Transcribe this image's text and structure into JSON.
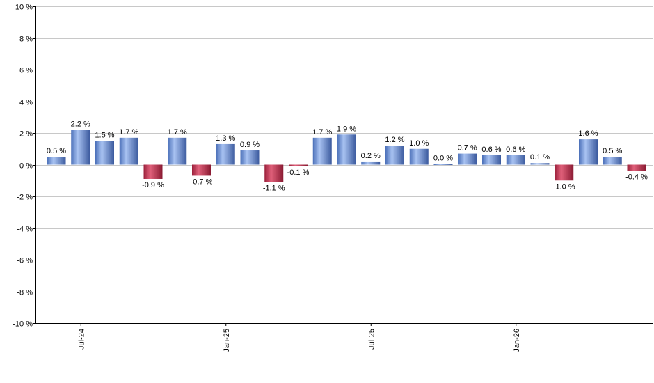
{
  "chart_data": {
    "type": "bar",
    "title": "",
    "xlabel": "",
    "ylabel": "",
    "ylim": [
      -10,
      10
    ],
    "grid": true,
    "legend": "none",
    "y_ticks": [
      {
        "value": 10,
        "label": "10 %"
      },
      {
        "value": 8,
        "label": "8 %"
      },
      {
        "value": 6,
        "label": "6 %"
      },
      {
        "value": 4,
        "label": "4 %"
      },
      {
        "value": 2,
        "label": "2 %"
      },
      {
        "value": 0,
        "label": "0 %"
      },
      {
        "value": -2,
        "label": "-2 %"
      },
      {
        "value": -4,
        "label": "-4 %"
      },
      {
        "value": -6,
        "label": "-6 %"
      },
      {
        "value": -8,
        "label": "-8 %"
      },
      {
        "value": -10,
        "label": "-10 %"
      }
    ],
    "x_ticks": [
      {
        "bar_index": 1,
        "label": "Jul-24"
      },
      {
        "bar_index": 7,
        "label": "Jan-25"
      },
      {
        "bar_index": 13,
        "label": "Jul-25"
      },
      {
        "bar_index": 19,
        "label": "Jan-26"
      }
    ],
    "values": [
      0.5,
      2.2,
      1.5,
      1.7,
      -0.9,
      1.7,
      -0.7,
      1.3,
      0.9,
      -1.1,
      -0.1,
      1.7,
      1.9,
      0.2,
      1.2,
      1.0,
      0.0,
      0.7,
      0.6,
      0.6,
      0.1,
      -1.0,
      1.6,
      0.5,
      -0.4
    ],
    "value_labels": [
      "0.5 %",
      "2.2 %",
      "1.5 %",
      "1.7 %",
      "-0.9 %",
      "1.7 %",
      "-0.7 %",
      "1.3 %",
      "0.9 %",
      "-1.1 %",
      "-0.1 %",
      "1.7 %",
      "1.9 %",
      "0.2 %",
      "1.2 %",
      "1.0 %",
      "0.0 %",
      "0.7 %",
      "0.6 %",
      "0.6 %",
      "0.1 %",
      "-1.0 %",
      "1.6 %",
      "0.5 %",
      "-0.4 %"
    ],
    "colors": {
      "positive": "#7b9fe0",
      "negative": "#c43a5a",
      "grid": "#c8c8c8",
      "axis": "#000000"
    }
  }
}
